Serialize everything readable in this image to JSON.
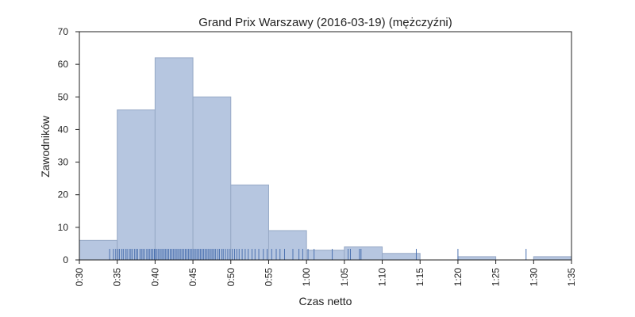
{
  "chart_data": {
    "type": "bar",
    "title": "Grand Prix Warszawy (2016-03-19) (mężczyźni)",
    "xlabel": "Czas netto",
    "ylabel": "Zawodników",
    "xlim": [
      30,
      95
    ],
    "ylim": [
      0,
      70
    ],
    "x_ticks": [
      30,
      35,
      40,
      45,
      50,
      55,
      60,
      65,
      70,
      75,
      80,
      85,
      90,
      95
    ],
    "x_tick_labels": [
      "0:30",
      "0:35",
      "0:40",
      "0:45",
      "0:50",
      "0:55",
      "1:00",
      "1:05",
      "1:10",
      "1:15",
      "1:20",
      "1:25",
      "1:30",
      "1:35"
    ],
    "y_ticks": [
      0,
      10,
      20,
      30,
      40,
      50,
      60,
      70
    ],
    "y_tick_labels": [
      "0",
      "10",
      "20",
      "30",
      "40",
      "50",
      "60",
      "70"
    ],
    "bins": [
      {
        "start": 30,
        "end": 35,
        "count": 6
      },
      {
        "start": 35,
        "end": 40,
        "count": 46
      },
      {
        "start": 40,
        "end": 45,
        "count": 62
      },
      {
        "start": 45,
        "end": 50,
        "count": 50
      },
      {
        "start": 50,
        "end": 55,
        "count": 23
      },
      {
        "start": 55,
        "end": 60,
        "count": 9
      },
      {
        "start": 60,
        "end": 65,
        "count": 3
      },
      {
        "start": 65,
        "end": 70,
        "count": 4
      },
      {
        "start": 70,
        "end": 75,
        "count": 2
      },
      {
        "start": 75,
        "end": 80,
        "count": 0
      },
      {
        "start": 80,
        "end": 85,
        "count": 1
      },
      {
        "start": 85,
        "end": 90,
        "count": 0
      },
      {
        "start": 90,
        "end": 95,
        "count": 1
      }
    ],
    "rug": [
      34.0,
      34.5,
      34.8,
      35.1,
      35.3,
      35.6,
      35.8,
      36.1,
      36.3,
      36.6,
      36.8,
      37.0,
      37.3,
      37.5,
      37.7,
      38.0,
      38.2,
      38.4,
      38.6,
      38.9,
      39.1,
      39.3,
      39.5,
      39.7,
      39.9,
      40.0,
      40.2,
      40.4,
      40.6,
      40.8,
      41.0,
      41.2,
      41.4,
      41.6,
      41.8,
      42.0,
      42.2,
      42.4,
      42.6,
      42.8,
      43.0,
      43.2,
      43.4,
      43.6,
      43.8,
      44.0,
      44.2,
      44.4,
      44.6,
      44.8,
      45.0,
      45.2,
      45.4,
      45.6,
      45.8,
      46.0,
      46.2,
      46.4,
      46.6,
      46.8,
      47.0,
      47.2,
      47.4,
      47.6,
      47.8,
      48.0,
      48.3,
      48.5,
      48.8,
      49.0,
      49.3,
      49.6,
      49.9,
      50.2,
      50.5,
      50.8,
      51.1,
      51.5,
      51.9,
      52.3,
      52.8,
      53.2,
      53.7,
      54.3,
      54.8,
      55.4,
      56.0,
      56.5,
      57.1,
      58.2,
      59.0,
      59.5,
      60.2,
      61.0,
      63.4,
      65.5,
      65.8,
      67.0,
      67.2,
      74.5,
      80.0,
      89.0
    ],
    "colors": {
      "bar_fill": "#b6c6e0",
      "bar_stroke": "#97a9c6",
      "rug": "#4c72b0",
      "axis": "#222222"
    },
    "grid": false,
    "legend": "none"
  }
}
